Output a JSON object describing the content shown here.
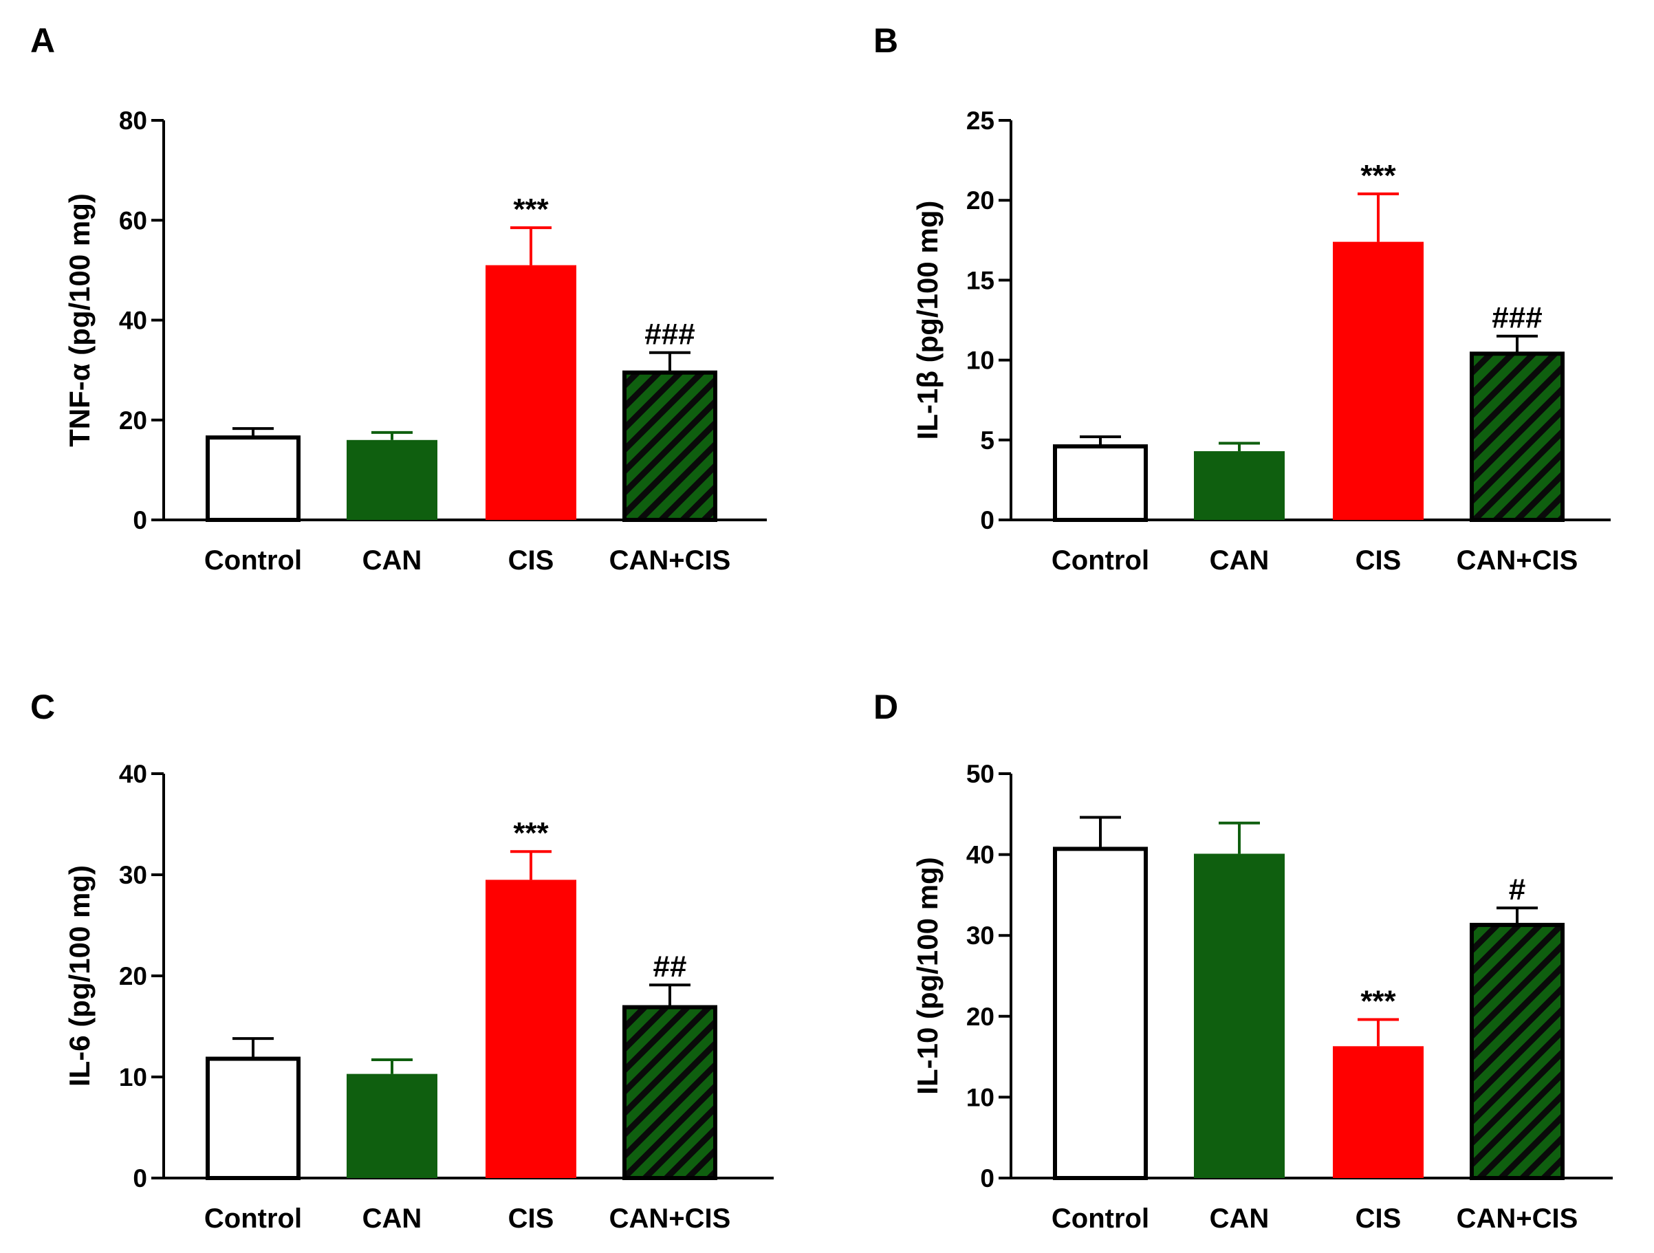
{
  "chart_data": [
    {
      "panel": "A",
      "type": "bar",
      "ylabel": "TNF-α (pg/100 mg)",
      "ylim": [
        0,
        80
      ],
      "yticks": [
        0,
        20,
        40,
        60,
        80
      ],
      "categories": [
        "Control",
        "CAN",
        "CIS",
        "CAN+CIS"
      ],
      "values": [
        16.5,
        16.0,
        51.0,
        29.5
      ],
      "errors": [
        1.8,
        1.5,
        7.5,
        4.0
      ],
      "significance": [
        "",
        "",
        "***",
        "###"
      ]
    },
    {
      "panel": "B",
      "type": "bar",
      "ylabel": "IL-1β (pg/100 mg)",
      "ylim": [
        0,
        25
      ],
      "yticks": [
        0,
        5,
        10,
        15,
        20,
        25
      ],
      "categories": [
        "Control",
        "CAN",
        "CIS",
        "CAN+CIS"
      ],
      "values": [
        4.6,
        4.3,
        17.4,
        10.4
      ],
      "errors": [
        0.6,
        0.5,
        3.0,
        1.1
      ],
      "significance": [
        "",
        "",
        "***",
        "###"
      ]
    },
    {
      "panel": "C",
      "type": "bar",
      "ylabel": "IL-6 (pg/100 mg)",
      "ylim": [
        0,
        40
      ],
      "yticks": [
        0,
        10,
        20,
        30,
        40
      ],
      "categories": [
        "Control",
        "CAN",
        "CIS",
        "CAN+CIS"
      ],
      "values": [
        11.8,
        10.3,
        29.5,
        16.9
      ],
      "errors": [
        2.0,
        1.4,
        2.8,
        2.2
      ],
      "significance": [
        "",
        "",
        "***",
        "##"
      ]
    },
    {
      "panel": "D",
      "type": "bar",
      "ylabel": "IL-10 (pg/100 mg)",
      "ylim": [
        0,
        50
      ],
      "yticks": [
        0,
        10,
        20,
        30,
        40,
        50
      ],
      "categories": [
        "Control",
        "CAN",
        "CIS",
        "CAN+CIS"
      ],
      "values": [
        40.7,
        40.1,
        16.3,
        31.3
      ],
      "errors": [
        3.9,
        3.8,
        3.3,
        2.1
      ],
      "significance": [
        "",
        "",
        "***",
        "#"
      ]
    }
  ],
  "styles": {
    "bar_colors": [
      "#ffffff",
      "#0f5f0f",
      "#ff0000",
      "#0f5f0f"
    ],
    "bar_patterns": [
      "none",
      "none",
      "none",
      "diagonal-hatch"
    ],
    "error_colors": [
      "#000000",
      "#0f5f0f",
      "#ff0000",
      "#000000"
    ],
    "hatch_stripe_color": "#0a0a0a",
    "axis_color": "#000000"
  }
}
